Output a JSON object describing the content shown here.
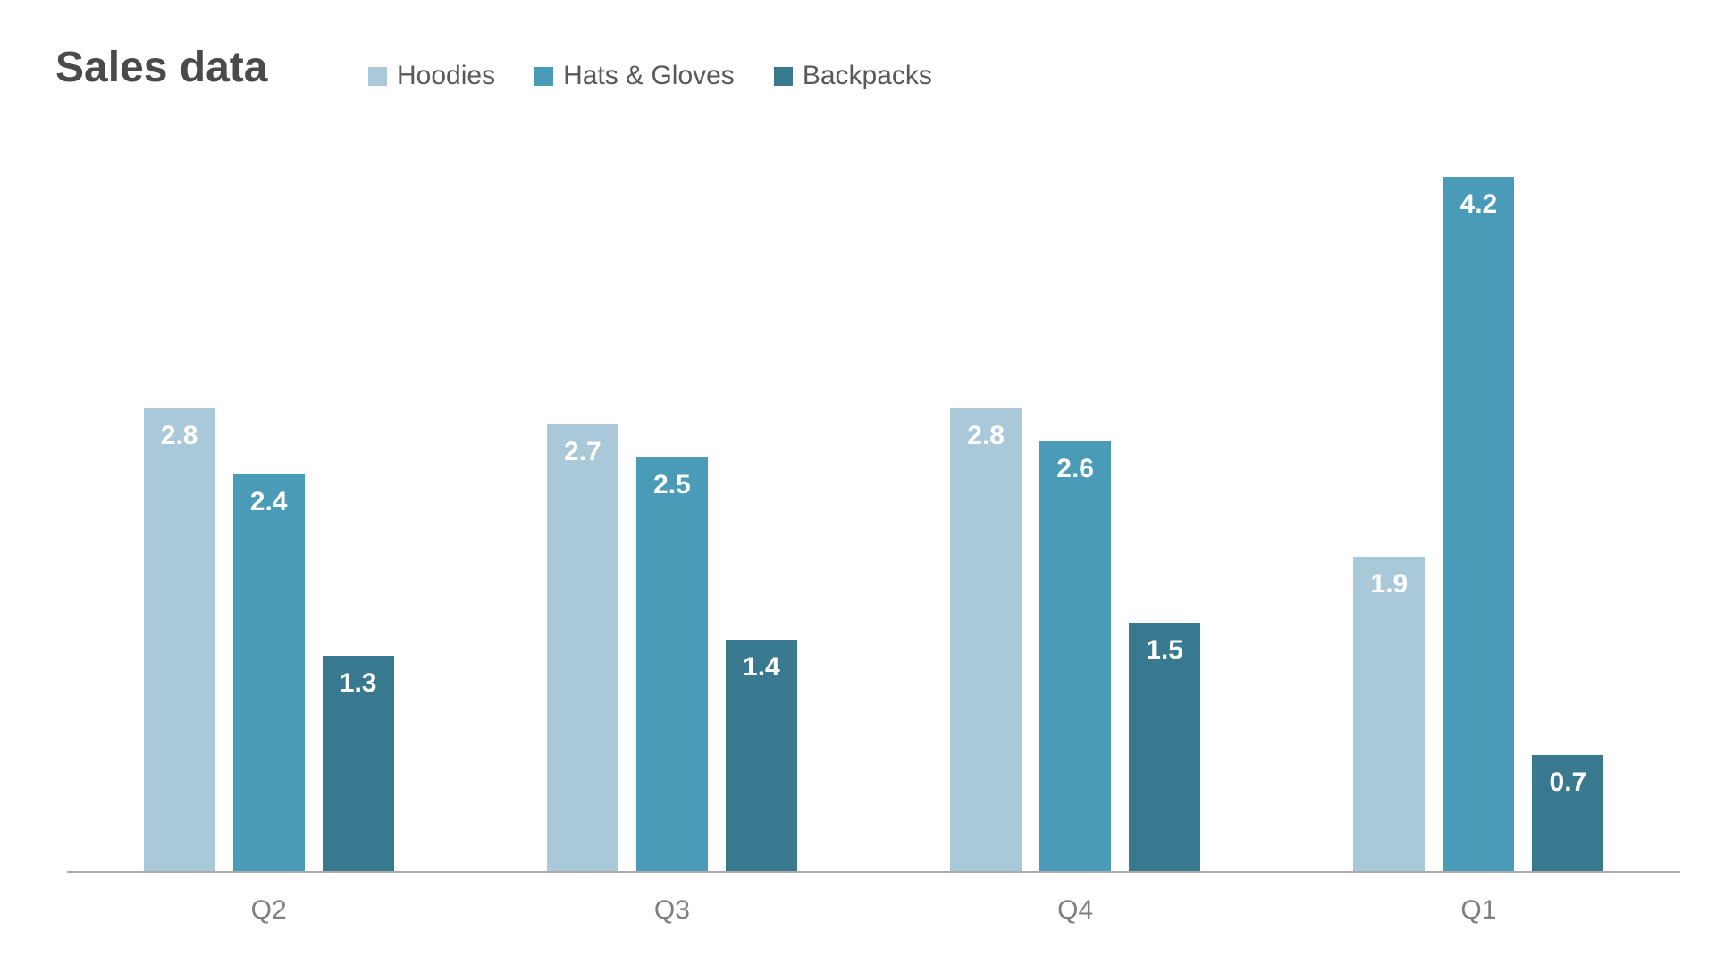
{
  "title": "Sales data",
  "chart_data": {
    "type": "bar",
    "title": "Sales data",
    "categories": [
      "Q2",
      "Q3",
      "Q4",
      "Q1"
    ],
    "series": [
      {
        "name": "Hoodies",
        "color": "#a9c8d8",
        "values": [
          2.8,
          2.7,
          2.8,
          1.9
        ]
      },
      {
        "name": "Hats & Gloves",
        "color": "#4a9bb8",
        "values": [
          2.4,
          2.5,
          2.6,
          4.2
        ]
      },
      {
        "name": "Backpacks",
        "color": "#38798f",
        "values": [
          1.3,
          1.4,
          1.5,
          0.7
        ]
      }
    ],
    "xlabel": "",
    "ylabel": "",
    "ylim": [
      0,
      4.5
    ],
    "grid": false,
    "legend_position": "top",
    "data_labels": "inside-top",
    "axis_color": "#ababab",
    "title_color": "#4a4a4a",
    "label_text_color": "#ffffff"
  }
}
